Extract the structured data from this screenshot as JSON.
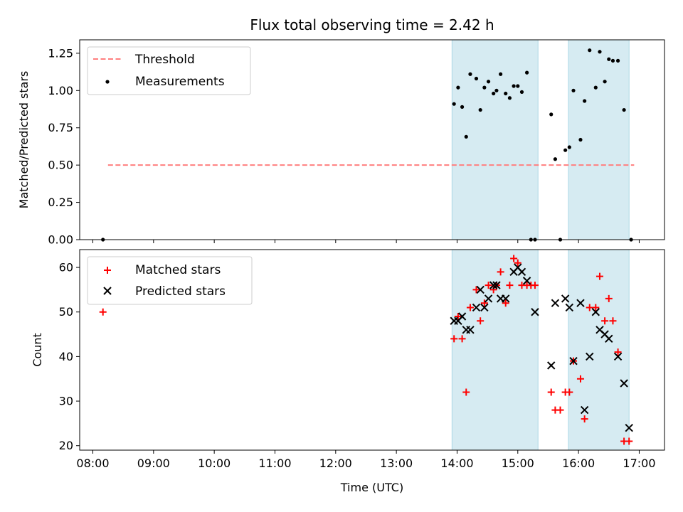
{
  "chart_data": {
    "type": "scatter",
    "title": "Flux total observing time = 2.42 h",
    "xlabel": "Time (UTC)",
    "x_tick_labels": [
      "08:00",
      "09:00",
      "10:00",
      "11:00",
      "12:00",
      "13:00",
      "14:00",
      "15:00",
      "16:00",
      "17:00"
    ],
    "x_ticks": [
      "08:00",
      "09:00",
      "10:00",
      "11:00",
      "12:00",
      "13:00",
      "14:00",
      "15:00",
      "16:00",
      "17:00"
    ],
    "xlim": [
      "07:47",
      "17:25"
    ],
    "shaded_intervals": [
      {
        "start": "13:55",
        "end": "15:20",
        "color": "#add8e6"
      },
      {
        "start": "15:50",
        "end": "16:50",
        "color": "#add8e6"
      }
    ],
    "panels": [
      {
        "ylabel": "Matched/Predicted stars",
        "ylim": [
          0,
          1.34
        ],
        "y_ticks": [
          0.0,
          0.25,
          0.5,
          0.75,
          1.0,
          1.25
        ],
        "y_tick_labels": [
          "0.00",
          "0.25",
          "0.50",
          "0.75",
          "1.00",
          "1.25"
        ],
        "legend": {
          "position": "upper left",
          "entries": [
            "Threshold",
            "Measurements"
          ]
        },
        "threshold": {
          "name": "Threshold",
          "value": 0.5,
          "x_start": "08:15",
          "x_end": "16:55",
          "color": "#ff7f7f",
          "style": "dashed"
        },
        "measurements": {
          "name": "Measurements",
          "color": "#000000",
          "points": [
            [
              "08:10",
              0.0
            ],
            [
              "13:57",
              0.91
            ],
            [
              "14:01",
              1.02
            ],
            [
              "14:05",
              0.89
            ],
            [
              "14:09",
              0.69
            ],
            [
              "14:13",
              1.11
            ],
            [
              "14:19",
              1.08
            ],
            [
              "14:23",
              0.87
            ],
            [
              "14:27",
              1.02
            ],
            [
              "14:31",
              1.06
            ],
            [
              "14:36",
              0.98
            ],
            [
              "14:39",
              1.0
            ],
            [
              "14:43",
              1.11
            ],
            [
              "14:48",
              0.98
            ],
            [
              "14:52",
              0.95
            ],
            [
              "14:56",
              1.03
            ],
            [
              "15:00",
              1.03
            ],
            [
              "15:04",
              0.99
            ],
            [
              "15:09",
              1.12
            ],
            [
              "15:13",
              0.0
            ],
            [
              "15:17",
              0.0
            ],
            [
              "15:33",
              0.84
            ],
            [
              "15:37",
              0.54
            ],
            [
              "15:42",
              0.0
            ],
            [
              "15:47",
              0.6
            ],
            [
              "15:51",
              0.62
            ],
            [
              "15:55",
              1.0
            ],
            [
              "16:02",
              0.67
            ],
            [
              "16:06",
              0.93
            ],
            [
              "16:11",
              1.27
            ],
            [
              "16:17",
              1.02
            ],
            [
              "16:21",
              1.26
            ],
            [
              "16:26",
              1.06
            ],
            [
              "16:30",
              1.21
            ],
            [
              "16:34",
              1.2
            ],
            [
              "16:39",
              1.2
            ],
            [
              "16:45",
              0.87
            ],
            [
              "16:52",
              0.0
            ]
          ]
        }
      },
      {
        "ylabel": "Count",
        "ylim": [
          19,
          64
        ],
        "y_ticks": [
          20,
          30,
          40,
          50,
          60
        ],
        "y_tick_labels": [
          "20",
          "30",
          "40",
          "50",
          "60"
        ],
        "legend": {
          "position": "upper left",
          "entries": [
            "Matched stars",
            "Predicted stars"
          ]
        },
        "series": [
          {
            "name": "Matched stars",
            "marker": "plus",
            "color": "#ff0000",
            "points": [
              [
                "08:10",
                50
              ],
              [
                "13:57",
                44
              ],
              [
                "14:01",
                49
              ],
              [
                "14:05",
                44
              ],
              [
                "14:09",
                32
              ],
              [
                "14:13",
                51
              ],
              [
                "14:19",
                55
              ],
              [
                "14:23",
                48
              ],
              [
                "14:27",
                52
              ],
              [
                "14:31",
                56
              ],
              [
                "14:36",
                55
              ],
              [
                "14:39",
                56
              ],
              [
                "14:43",
                59
              ],
              [
                "14:48",
                52
              ],
              [
                "14:52",
                56
              ],
              [
                "14:56",
                62
              ],
              [
                "15:00",
                61
              ],
              [
                "15:04",
                56
              ],
              [
                "15:09",
                56
              ],
              [
                "15:13",
                56
              ],
              [
                "15:17",
                56
              ],
              [
                "15:33",
                32
              ],
              [
                "15:37",
                28
              ],
              [
                "15:42",
                28
              ],
              [
                "15:47",
                32
              ],
              [
                "15:51",
                32
              ],
              [
                "15:55",
                39
              ],
              [
                "16:02",
                35
              ],
              [
                "16:06",
                26
              ],
              [
                "16:11",
                51
              ],
              [
                "16:17",
                51
              ],
              [
                "16:21",
                58
              ],
              [
                "16:26",
                48
              ],
              [
                "16:30",
                53
              ],
              [
                "16:34",
                48
              ],
              [
                "16:39",
                41
              ],
              [
                "16:45",
                21
              ],
              [
                "16:50",
                21
              ]
            ]
          },
          {
            "name": "Predicted stars",
            "marker": "x",
            "color": "#000000",
            "points": [
              [
                "13:57",
                48
              ],
              [
                "14:01",
                48
              ],
              [
                "14:05",
                49
              ],
              [
                "14:09",
                46
              ],
              [
                "14:13",
                46
              ],
              [
                "14:19",
                51
              ],
              [
                "14:23",
                55
              ],
              [
                "14:27",
                51
              ],
              [
                "14:31",
                53
              ],
              [
                "14:36",
                56
              ],
              [
                "14:39",
                56
              ],
              [
                "14:43",
                53
              ],
              [
                "14:48",
                53
              ],
              [
                "14:56",
                59
              ],
              [
                "15:00",
                60
              ],
              [
                "15:04",
                59
              ],
              [
                "15:09",
                57
              ],
              [
                "15:17",
                50
              ],
              [
                "15:33",
                38
              ],
              [
                "15:37",
                52
              ],
              [
                "15:47",
                53
              ],
              [
                "15:51",
                51
              ],
              [
                "15:55",
                39
              ],
              [
                "16:02",
                52
              ],
              [
                "16:06",
                28
              ],
              [
                "16:11",
                40
              ],
              [
                "16:17",
                50
              ],
              [
                "16:21",
                46
              ],
              [
                "16:26",
                45
              ],
              [
                "16:30",
                44
              ],
              [
                "16:39",
                40
              ],
              [
                "16:45",
                34
              ],
              [
                "16:50",
                24
              ]
            ]
          }
        ]
      }
    ]
  }
}
